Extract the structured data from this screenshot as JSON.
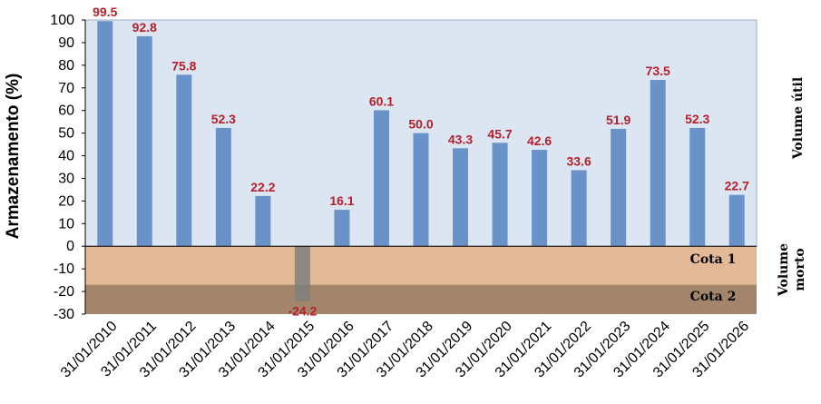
{
  "chart_data": {
    "type": "bar",
    "ylabel": "Armazenamento (%)",
    "xlabel": "",
    "ylim": [
      -30,
      100
    ],
    "yticks": [
      100,
      90,
      80,
      70,
      60,
      50,
      40,
      30,
      20,
      10,
      0,
      -10,
      -20,
      -30
    ],
    "categories": [
      "31/01/2010",
      "31/01/2011",
      "31/01/2012",
      "31/01/2013",
      "31/01/2014",
      "31/01/2015",
      "31/01/2016",
      "31/01/2017",
      "31/01/2018",
      "31/01/2019",
      "31/01/2020",
      "31/01/2021",
      "31/01/2022",
      "31/01/2023",
      "31/01/2024",
      "31/01/2025",
      "31/01/2026"
    ],
    "values": [
      99.5,
      92.8,
      75.8,
      52.3,
      22.2,
      -24.2,
      16.1,
      60.1,
      50.0,
      43.3,
      45.7,
      42.6,
      33.6,
      51.9,
      73.5,
      52.3,
      22.7
    ],
    "data_labels": [
      "99.5",
      "92.8",
      "75.8",
      "52.3",
      "22.2",
      "-24.2",
      "16.1",
      "60.1",
      "50.0",
      "43.3",
      "45.7",
      "42.6",
      "33.6",
      "51.9",
      "73.5",
      "52.3",
      "22.7"
    ],
    "zones": {
      "volume_util": "Volume útil",
      "volume_morto_line1": "Volume",
      "volume_morto_line2": "morto",
      "cota1": "Cota 1",
      "cota2": "Cota 2",
      "cota1_range": [
        -17,
        0
      ],
      "cota2_range": [
        -30,
        -17
      ]
    },
    "grid": false,
    "legend": "none"
  },
  "colors": {
    "bar_positive": "#6892c8",
    "bar_negative": "#7f7f7f",
    "data_label": "#b5202a",
    "volume_util_bg": "#dce6f2",
    "cota1_bg": "#e2b996",
    "cota2_bg": "#a2856a"
  }
}
